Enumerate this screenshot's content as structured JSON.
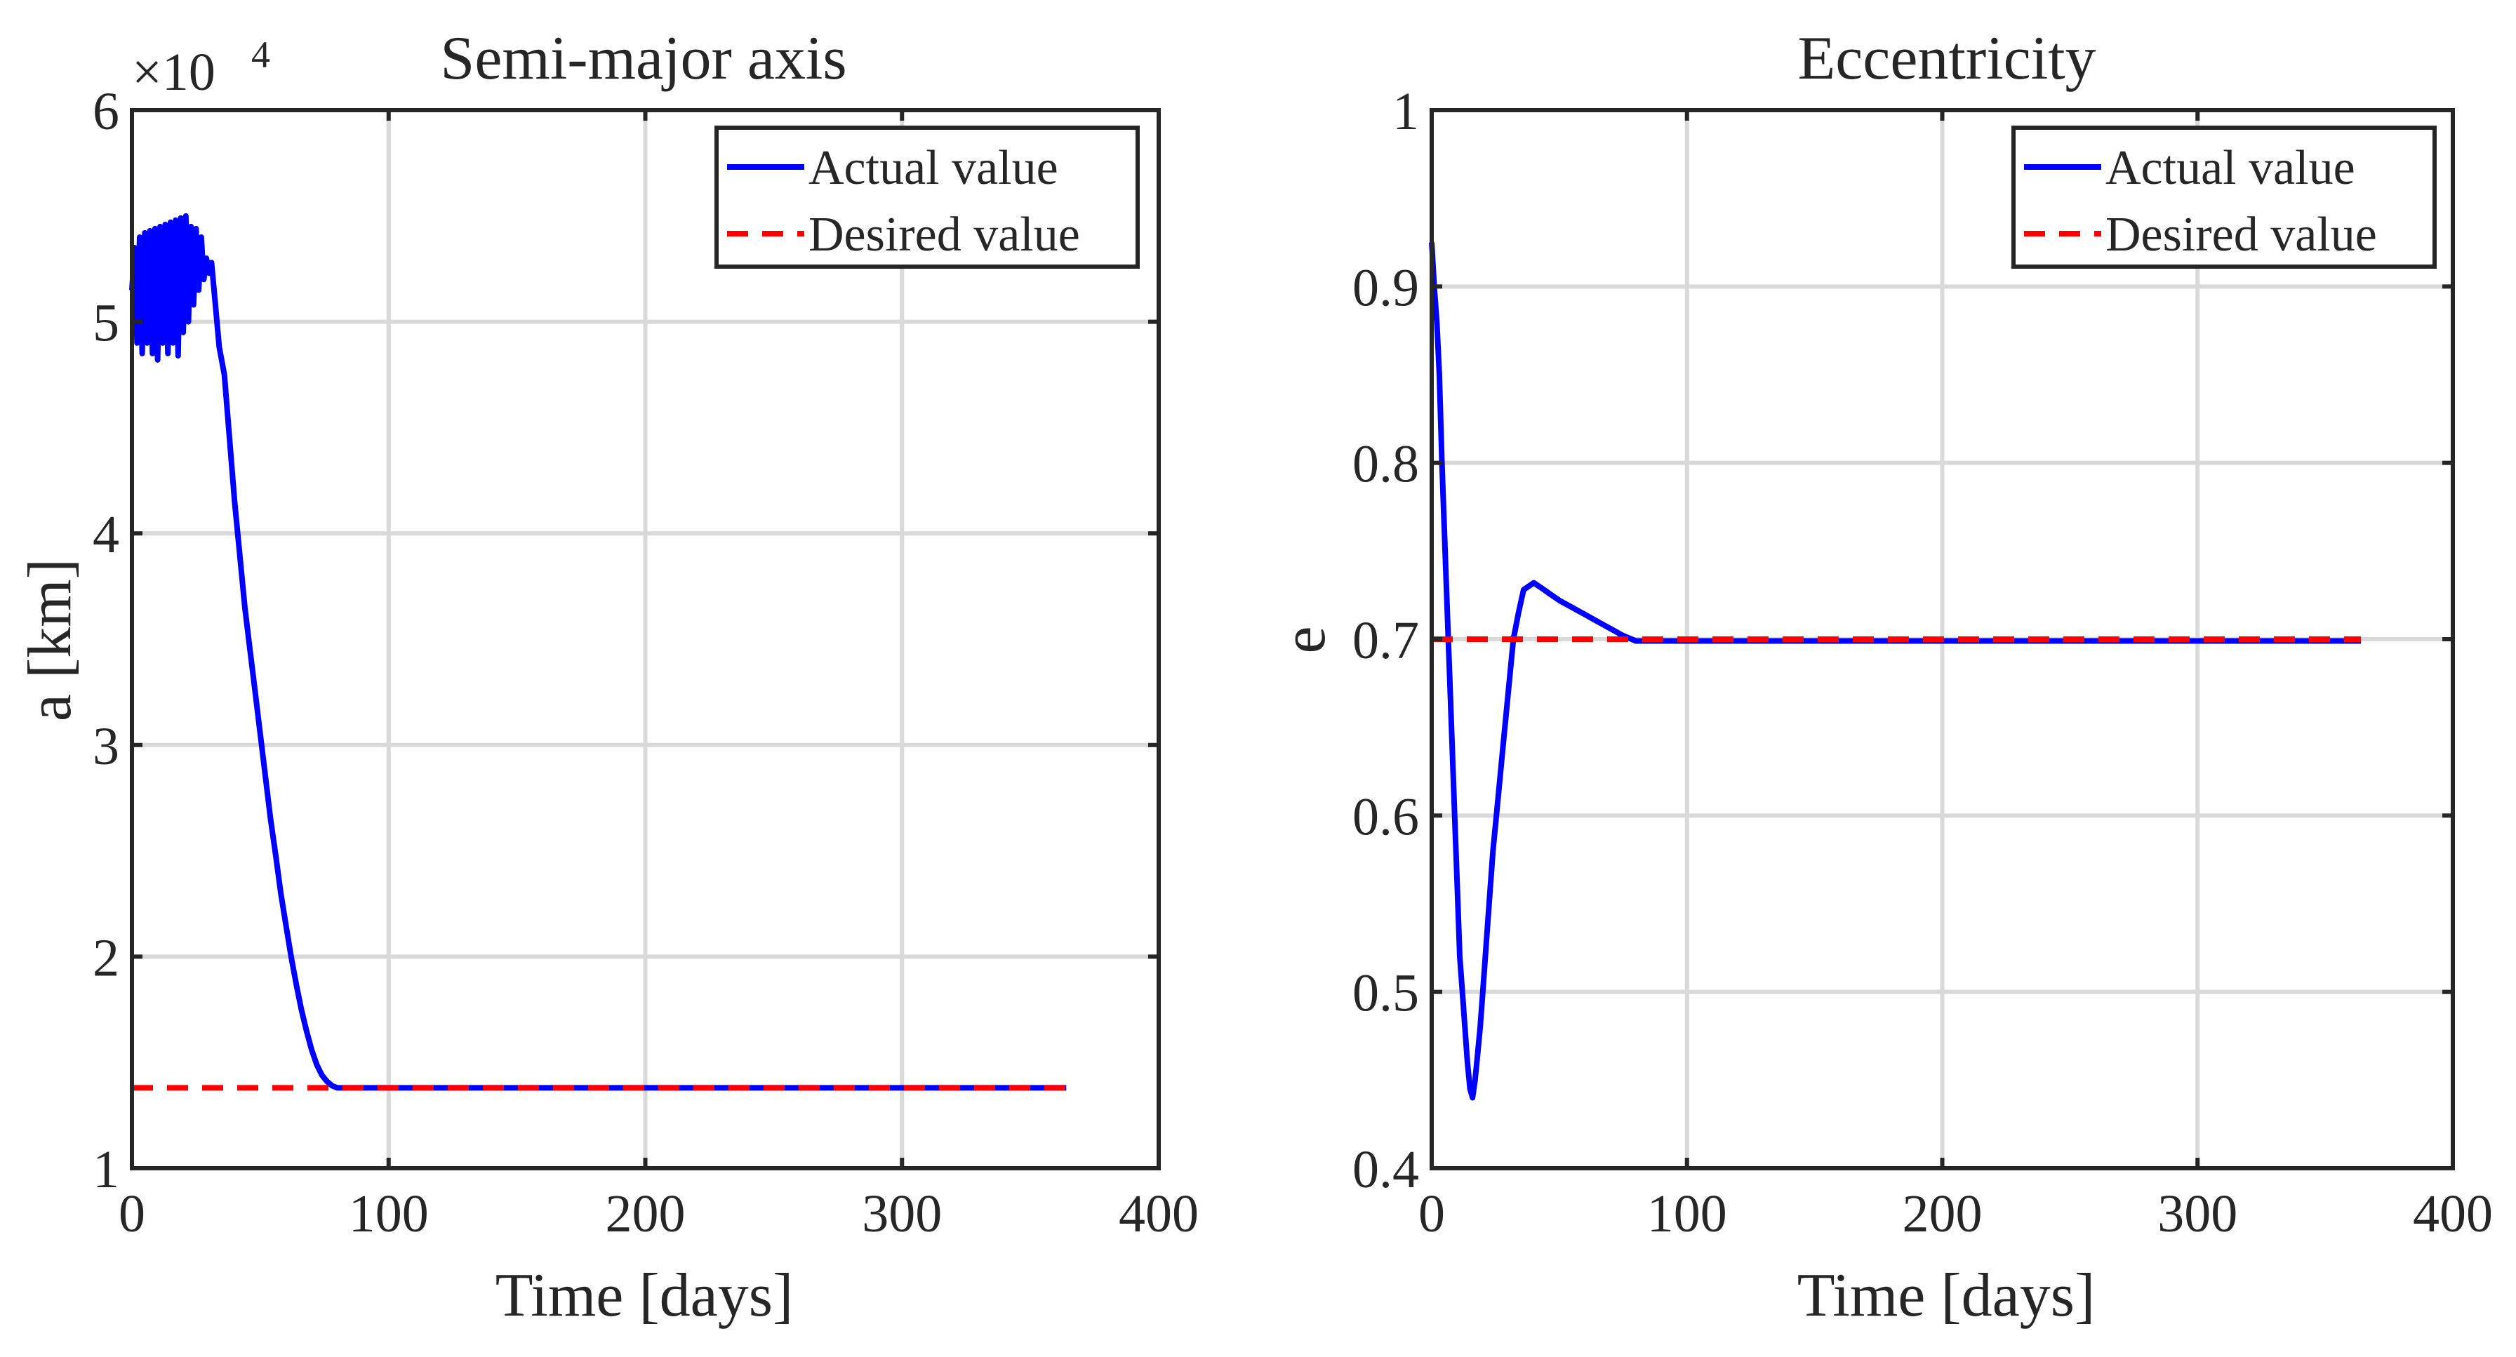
{
  "chart_data": [
    {
      "type": "line",
      "title": "Semi-major axis",
      "xlabel": "Time  [days]",
      "ylabel": "a  [km]",
      "xlim": [
        0,
        400
      ],
      "ylim": [
        10000,
        60000
      ],
      "xticks": [
        0,
        100,
        200,
        300,
        400
      ],
      "xtick_labels": [
        "0",
        "100",
        "200",
        "300",
        "400"
      ],
      "yticks": [
        10000,
        20000,
        30000,
        40000,
        50000,
        60000
      ],
      "ytick_labels": [
        "1",
        "2",
        "3",
        "4",
        "5",
        "6"
      ],
      "exponent_base": "×10",
      "exponent_power": "4",
      "grid": true,
      "legend_position": "top-right",
      "series": [
        {
          "name": "Actual value",
          "color": "#0000FF",
          "style": "solid",
          "x": [
            0,
            1,
            2,
            3,
            4,
            5,
            6,
            7,
            8,
            9,
            10,
            11,
            12,
            13,
            14,
            15,
            16,
            17,
            18,
            19,
            20,
            21,
            22,
            23,
            24,
            25,
            26,
            27,
            28,
            29,
            30,
            31,
            32,
            34,
            36,
            38,
            40,
            42,
            44,
            46,
            48,
            50,
            52,
            54,
            56,
            58,
            60,
            62,
            64,
            66,
            68,
            70,
            72,
            74,
            76,
            78,
            80,
            90,
            120,
            160,
            200,
            240,
            280,
            320,
            364
          ],
          "y": [
            51500,
            53500,
            49000,
            54000,
            48500,
            54200,
            49000,
            54300,
            48500,
            54400,
            48200,
            54500,
            49000,
            54600,
            48500,
            54700,
            49000,
            54800,
            48400,
            54900,
            49500,
            55000,
            50000,
            54500,
            50800,
            54400,
            51500,
            54000,
            52000,
            53000,
            52300,
            52800,
            51500,
            48800,
            47500,
            44500,
            41500,
            39000,
            36500,
            34500,
            32500,
            30500,
            28500,
            26500,
            24800,
            23000,
            21500,
            20000,
            18700,
            17500,
            16500,
            15600,
            14900,
            14400,
            14100,
            13900,
            13800,
            13800,
            13800,
            13800,
            13800,
            13800,
            13800,
            13800,
            13800
          ]
        },
        {
          "name": "Desired value",
          "color": "#FF0000",
          "style": "dashed",
          "x": [
            0,
            364
          ],
          "y": [
            13800,
            13800
          ]
        }
      ]
    },
    {
      "type": "line",
      "title": "Eccentricity",
      "xlabel": "Time [days]",
      "ylabel": "e",
      "xlim": [
        0,
        400
      ],
      "ylim": [
        0.4,
        1.0
      ],
      "xticks": [
        0,
        100,
        200,
        300,
        400
      ],
      "xtick_labels": [
        "0",
        "100",
        "200",
        "300",
        "400"
      ],
      "yticks": [
        0.4,
        0.5,
        0.6,
        0.7,
        0.8,
        0.9,
        1.0
      ],
      "ytick_labels": [
        "0.4",
        "0.5",
        "0.6",
        "0.7",
        "0.8",
        "0.9",
        "1"
      ],
      "grid": true,
      "legend_position": "top-right",
      "series": [
        {
          "name": "Actual value",
          "color": "#0000FF",
          "style": "solid",
          "x": [
            0,
            1,
            2,
            3,
            4,
            5,
            6,
            7,
            8,
            9,
            10,
            11,
            12,
            13,
            14,
            15,
            16,
            17,
            18,
            19,
            20,
            21,
            22,
            24,
            26,
            28,
            30,
            32,
            34,
            36,
            38,
            40,
            42,
            44,
            46,
            48,
            50,
            55,
            60,
            65,
            70,
            75,
            80,
            85,
            100,
            150,
            200,
            250,
            300,
            364
          ],
          "y": [
            0.925,
            0.9,
            0.88,
            0.85,
            0.8,
            0.76,
            0.72,
            0.68,
            0.64,
            0.6,
            0.56,
            0.52,
            0.5,
            0.48,
            0.46,
            0.445,
            0.44,
            0.45,
            0.465,
            0.48,
            0.5,
            0.52,
            0.54,
            0.58,
            0.61,
            0.64,
            0.67,
            0.7,
            0.715,
            0.728,
            0.73,
            0.732,
            0.73,
            0.728,
            0.726,
            0.724,
            0.722,
            0.718,
            0.714,
            0.71,
            0.706,
            0.702,
            0.699,
            0.699,
            0.699,
            0.699,
            0.699,
            0.699,
            0.699,
            0.699
          ]
        },
        {
          "name": "Desired value",
          "color": "#FF0000",
          "style": "dashed",
          "x": [
            0,
            364
          ],
          "y": [
            0.7,
            0.7
          ]
        }
      ]
    }
  ]
}
